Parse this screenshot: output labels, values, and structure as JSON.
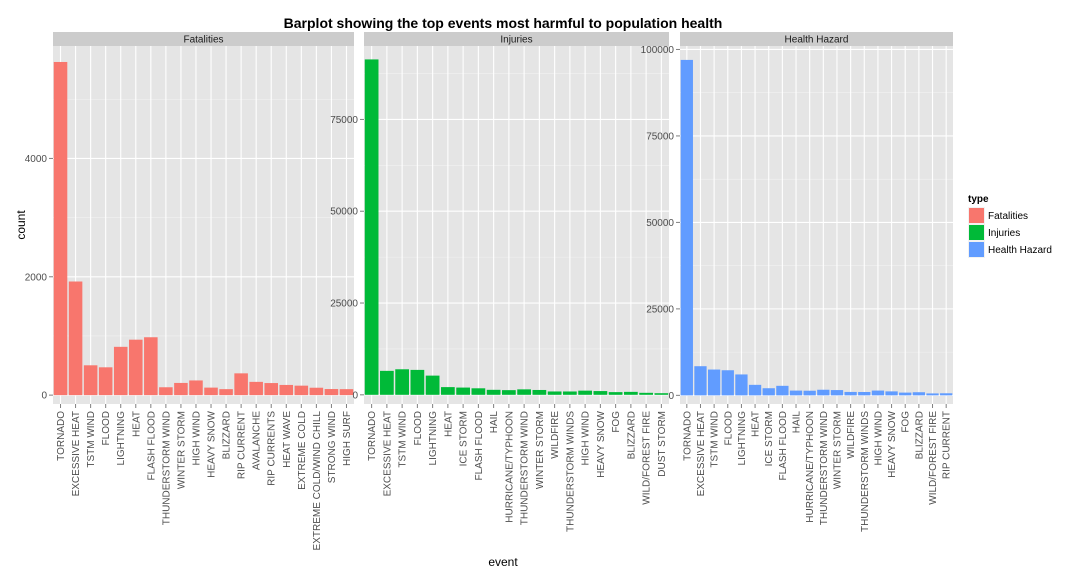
{
  "chart_data": {
    "type": "bar",
    "title": "Barplot showing the top events most harmful to population health",
    "xlabel": "event",
    "ylabel": "count",
    "grid": true,
    "legend": {
      "title": "type",
      "position": "right",
      "entries": [
        "Fatalities",
        "Injuries",
        "Health Hazard"
      ]
    },
    "colors": {
      "Fatalities": "#F8766D",
      "Injuries": "#00BA38",
      "Health Hazard": "#619CFF",
      "panel_bg": "#E5E5E5",
      "grid": "#FFFFFF",
      "strip_bg": "#CCCCCC"
    },
    "panels": [
      {
        "name": "Fatalities",
        "ylim": [
          -150,
          5900
        ],
        "y_ticks": [
          0,
          2000,
          4000
        ],
        "y_tick_labels": [
          "0",
          "2000",
          "4000"
        ],
        "categories": [
          "TORNADO",
          "EXCESSIVE HEAT",
          "TSTM WIND",
          "FLOOD",
          "LIGHTNING",
          "HEAT",
          "FLASH FLOOD",
          "THUNDERSTORM WIND",
          "WINTER STORM",
          "HIGH WIND",
          "HEAVY SNOW",
          "BLIZZARD",
          "RIP CURRENT",
          "AVALANCHE",
          "RIP CURRENTS",
          "HEAT WAVE",
          "EXTREME COLD",
          "EXTREME COLD/WIND CHILL",
          "STRONG WIND",
          "HIGH SURF"
        ],
        "values": [
          5630,
          1920,
          504,
          470,
          816,
          937,
          978,
          133,
          206,
          248,
          127,
          101,
          368,
          224,
          204,
          172,
          160,
          125,
          103,
          101
        ]
      },
      {
        "name": "Injuries",
        "ylim": [
          -2500,
          95000
        ],
        "y_ticks": [
          0,
          25000,
          50000,
          75000
        ],
        "y_tick_labels": [
          "0",
          "25000",
          "50000",
          "75000"
        ],
        "categories": [
          "TORNADO",
          "EXCESSIVE HEAT",
          "TSTM WIND",
          "FLOOD",
          "LIGHTNING",
          "HEAT",
          "ICE STORM",
          "FLASH FLOOD",
          "HAIL",
          "HURRICANE/TYPHOON",
          "THUNDERSTORM WIND",
          "WINTER STORM",
          "WILDFIRE",
          "THUNDERSTORM WINDS",
          "HIGH WIND",
          "HEAVY SNOW",
          "FOG",
          "BLIZZARD",
          "WILD/FOREST FIRE",
          "DUST STORM"
        ],
        "values": [
          91346,
          6525,
          6957,
          6789,
          5230,
          2100,
          1975,
          1777,
          1361,
          1275,
          1488,
          1321,
          911,
          908,
          1137,
          1021,
          734,
          805,
          545,
          440
        ]
      },
      {
        "name": "Health Hazard",
        "ylim": [
          -2500,
          101000
        ],
        "y_ticks": [
          0,
          25000,
          50000,
          75000,
          100000
        ],
        "y_tick_labels": [
          "0",
          "25000",
          "50000",
          "75000",
          "100000"
        ],
        "categories": [
          "TORNADO",
          "EXCESSIVE HEAT",
          "TSTM WIND",
          "FLOOD",
          "LIGHTNING",
          "HEAT",
          "ICE STORM",
          "FLASH FLOOD",
          "HAIL",
          "HURRICANE/TYPHOON",
          "THUNDERSTORM WIND",
          "WINTER STORM",
          "WILDFIRE",
          "THUNDERSTORM WINDS",
          "HIGH WIND",
          "HEAVY SNOW",
          "FOG",
          "BLIZZARD",
          "WILD/FOREST FIRE",
          "RIP CURRENT"
        ],
        "values": [
          96979,
          8428,
          7461,
          7259,
          6046,
          3037,
          2064,
          2755,
          1376,
          1339,
          1621,
          1527,
          986,
          972,
          1385,
          1148,
          796,
          906,
          557,
          600
        ]
      }
    ]
  }
}
